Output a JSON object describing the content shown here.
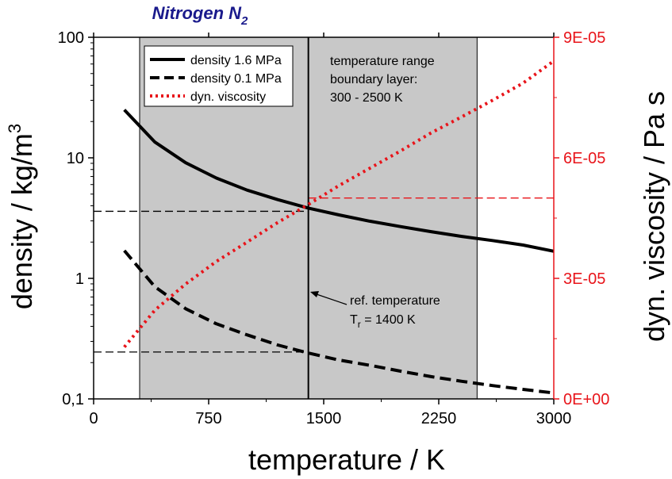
{
  "chart_data": {
    "type": "line",
    "title": "Nitrogen N",
    "title_subscript": "2",
    "xlabel": "temperature / K",
    "ylabel_left": "density / kg/m",
    "ylabel_left_sup": "3",
    "ylabel_right": "dyn. viscosity / Pa s",
    "xlim": [
      0,
      3000
    ],
    "xticks": [
      0,
      750,
      1500,
      2250,
      3000
    ],
    "xtick_labels": [
      "0",
      "750",
      "1500",
      "2250",
      "3000"
    ],
    "ylim_left": [
      0.1,
      100
    ],
    "yscale_left": "log",
    "yticks_left": [
      0.1,
      1,
      10,
      100
    ],
    "ytick_labels_left": [
      "0,1",
      "1",
      "10",
      "100"
    ],
    "ylim_right": [
      0,
      9e-05
    ],
    "yticks_right": [
      0,
      3e-05,
      6e-05,
      9e-05
    ],
    "ytick_labels_right": [
      "0E+00",
      "3E-05",
      "6E-05",
      "9E-05"
    ],
    "grid": false,
    "legend_position": "top-left",
    "colors": {
      "density": "#000000",
      "viscosity": "#e8141a",
      "shade": "#c8c8c8",
      "title": "#1a1a8c"
    },
    "shaded_region": {
      "x": [
        300,
        2500
      ]
    },
    "ref_line_x": 1400,
    "series": [
      {
        "name": "density 1.6 MPa",
        "axis": "left",
        "style": "solid",
        "x": [
          200,
          400,
          600,
          800,
          1000,
          1200,
          1400,
          1600,
          1800,
          2000,
          2200,
          2400,
          2600,
          2800,
          3000
        ],
        "values": [
          25.0,
          13.5,
          9.1,
          6.8,
          5.4,
          4.5,
          3.83,
          3.36,
          2.98,
          2.69,
          2.44,
          2.23,
          2.06,
          1.89,
          1.68
        ]
      },
      {
        "name": "density 0.1 MPa",
        "axis": "left",
        "style": "dashed",
        "x": [
          200,
          400,
          600,
          800,
          1000,
          1200,
          1400,
          1600,
          1800,
          2000,
          2200,
          2400,
          2600,
          2800,
          3000
        ],
        "values": [
          1.7,
          0.85,
          0.56,
          0.42,
          0.34,
          0.28,
          0.24,
          0.21,
          0.19,
          0.17,
          0.153,
          0.14,
          0.129,
          0.12,
          0.112
        ]
      },
      {
        "name": "dyn. viscosity",
        "axis": "right",
        "style": "dotted",
        "x": [
          200,
          400,
          600,
          800,
          1000,
          1200,
          1400,
          1600,
          1800,
          2000,
          2200,
          2400,
          2600,
          2800,
          3000
        ],
        "values": [
          1.29e-05,
          2.21e-05,
          2.86e-05,
          3.42e-05,
          3.9e-05,
          4.39e-05,
          4.84e-05,
          5.31e-05,
          5.74e-05,
          6.17e-05,
          6.62e-05,
          7.02e-05,
          7.43e-05,
          7.86e-05,
          8.41e-05
        ]
      }
    ],
    "ref_dashed_lines": [
      {
        "axis": "left",
        "y": 3.6,
        "x_from": 0,
        "x_to": 1400
      },
      {
        "axis": "left",
        "y": 0.245,
        "x_from": 0,
        "x_to": 1400
      },
      {
        "axis": "right",
        "y": 5e-05,
        "x_from": 1400,
        "x_to": 3000
      }
    ],
    "annotations": {
      "range_lines": [
        "temperature range",
        "boundary layer:",
        "300 - 2500 K"
      ],
      "ref_line1": "ref. temperature",
      "ref_line2_prefix": "T",
      "ref_line2_sub": "r",
      "ref_line2_suffix": " = 1400 K"
    }
  }
}
